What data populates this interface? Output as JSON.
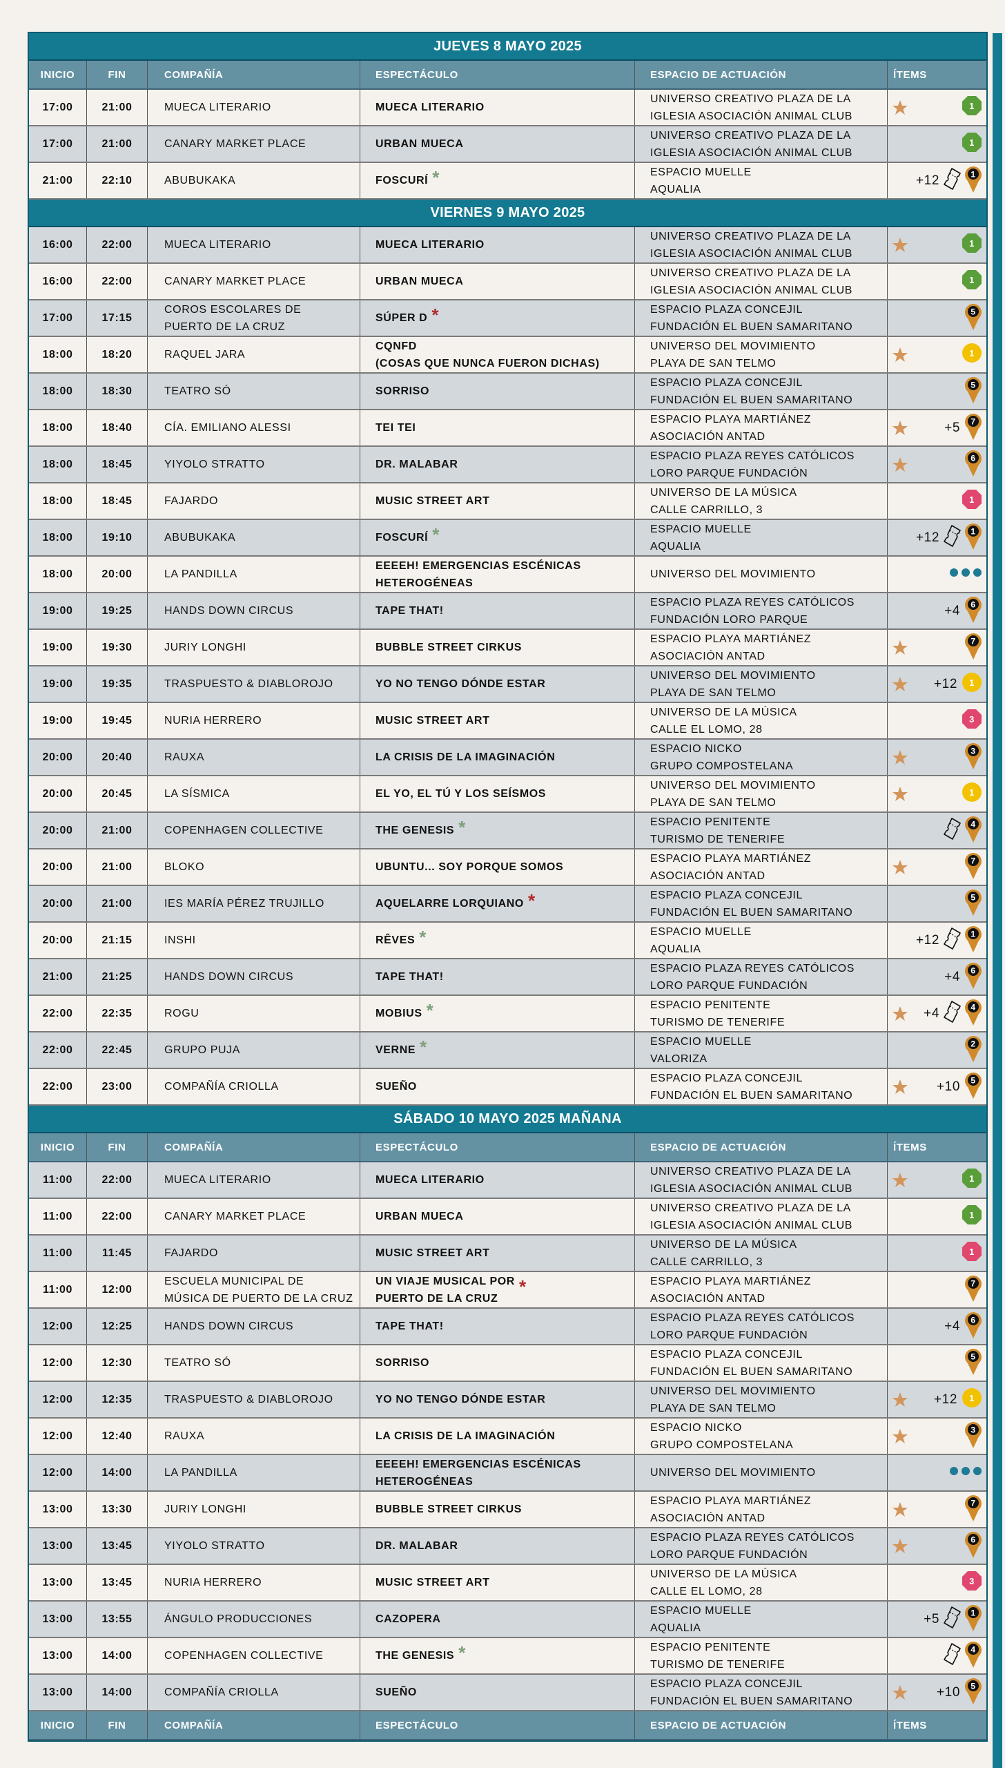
{
  "colors": {
    "title_bg": "#137a91",
    "header_bg": "#6492a3",
    "row_light": "#f5f2ed",
    "row_grey": "#d3d8dc",
    "star": "#d4955a",
    "asterisk_green": "#7ea07a",
    "asterisk_red": "#b02a2a",
    "badge_green": "#5a9e3a",
    "badge_pink": "#e0466e",
    "badge_yellow": "#f2c200",
    "badge_pin": "#d08a2a",
    "dots": "#1f7a94"
  },
  "columns": {
    "inicio": "INICIO",
    "fin": "FIN",
    "compania": "COMPAÑÍA",
    "espectaculo": "ESPECTÁCULO",
    "espacio": "ESPACIO DE ACTUACIÓN",
    "items": "ÍTEMS"
  },
  "sections": [
    {
      "title": "JUEVES 8 MAYO 2025",
      "show_header": true,
      "first_row": "cream",
      "rows": [
        {
          "inicio": "17:00",
          "fin": "21:00",
          "compania": [
            "MUECA LITERARIO"
          ],
          "espectaculo": [
            "MUECA LITERARIO"
          ],
          "espacio": [
            "UNIVERSO CREATIVO PLAZA DE LA",
            "IGLESIA ASOCIACIÓN ANIMAL CLUB"
          ],
          "star": true,
          "badge": "green-octagon",
          "num": "1"
        },
        {
          "inicio": "17:00",
          "fin": "21:00",
          "compania": [
            "CANARY MARKET PLACE"
          ],
          "espectaculo": [
            "URBAN MUECA"
          ],
          "espacio": [
            "UNIVERSO CREATIVO PLAZA DE LA",
            "IGLESIA ASOCIACIÓN ANIMAL CLUB"
          ],
          "badge": "green-octagon",
          "num": "1"
        },
        {
          "inicio": "21:00",
          "fin": "22:10",
          "compania": [
            "ABUBUKAKA"
          ],
          "espectaculo": [
            "FOSCURÍ"
          ],
          "asterisk": "green",
          "espacio": [
            "ESPACIO MUELLE",
            "AQUALIA"
          ],
          "extra": "+12",
          "ticket": true,
          "badge": "pin",
          "num": "1"
        }
      ]
    },
    {
      "title": "VIERNES 9 MAYO 2025",
      "show_header": false,
      "first_row": "grey",
      "rows": [
        {
          "inicio": "16:00",
          "fin": "22:00",
          "compania": [
            "MUECA LITERARIO"
          ],
          "espectaculo": [
            "MUECA LITERARIO"
          ],
          "espacio": [
            "UNIVERSO CREATIVO PLAZA DE LA",
            "IGLESIA ASOCIACIÓN ANIMAL CLUB"
          ],
          "star": true,
          "badge": "green-octagon",
          "num": "1"
        },
        {
          "inicio": "16:00",
          "fin": "22:00",
          "compania": [
            "CANARY MARKET PLACE"
          ],
          "espectaculo": [
            "URBAN MUECA"
          ],
          "espacio": [
            "UNIVERSO CREATIVO PLAZA DE LA",
            "IGLESIA ASOCIACIÓN ANIMAL CLUB"
          ],
          "badge": "green-octagon",
          "num": "1"
        },
        {
          "inicio": "17:00",
          "fin": "17:15",
          "compania": [
            "COROS ESCOLARES DE",
            "PUERTO DE LA CRUZ"
          ],
          "espectaculo": [
            "SÚPER D"
          ],
          "asterisk": "red",
          "espacio": [
            "ESPACIO PLAZA CONCEJIL",
            "FUNDACIÓN EL BUEN SAMARITANO"
          ],
          "badge": "pin",
          "num": "5"
        },
        {
          "inicio": "18:00",
          "fin": "18:20",
          "compania": [
            "RAQUEL JARA"
          ],
          "espectaculo": [
            "CQNFD",
            "(COSAS QUE NUNCA FUERON DICHAS)"
          ],
          "espacio": [
            "UNIVERSO DEL MOVIMIENTO",
            "PLAYA DE SAN TELMO"
          ],
          "star": true,
          "badge": "yellow-circle",
          "num": "1"
        },
        {
          "inicio": "18:00",
          "fin": "18:30",
          "compania": [
            "TEATRO SÓ"
          ],
          "espectaculo": [
            "SORRISO"
          ],
          "espacio": [
            "ESPACIO PLAZA CONCEJIL",
            "FUNDACIÓN EL BUEN SAMARITANO"
          ],
          "badge": "pin",
          "num": "5"
        },
        {
          "inicio": "18:00",
          "fin": "18:40",
          "compania": [
            "CÍA. EMILIANO ALESSI"
          ],
          "espectaculo": [
            "TEI TEI"
          ],
          "espacio": [
            "ESPACIO PLAYA MARTIÁNEZ",
            "ASOCIACIÓN ANTAD"
          ],
          "star": true,
          "extra": "+5",
          "badge": "pin",
          "num": "7"
        },
        {
          "inicio": "18:00",
          "fin": "18:45",
          "compania": [
            "YIYOLO STRATTO"
          ],
          "espectaculo": [
            "DR. MALABAR"
          ],
          "espacio": [
            "ESPACIO PLAZA REYES CATÓLICOS",
            "LORO PARQUE FUNDACIÓN"
          ],
          "star": true,
          "badge": "pin",
          "num": "6"
        },
        {
          "inicio": "18:00",
          "fin": "18:45",
          "compania": [
            "FAJARDO"
          ],
          "espectaculo": [
            "MUSIC STREET ART"
          ],
          "espacio": [
            "UNIVERSO DE LA MÚSICA",
            "CALLE CARRILLO, 3"
          ],
          "badge": "pink-octagon",
          "num": "1"
        },
        {
          "inicio": "18:00",
          "fin": "19:10",
          "compania": [
            "ABUBUKAKA"
          ],
          "espectaculo": [
            "FOSCURÍ"
          ],
          "asterisk": "green",
          "espacio": [
            "ESPACIO MUELLE",
            "AQUALIA"
          ],
          "extra": "+12",
          "ticket": true,
          "badge": "pin",
          "num": "1"
        },
        {
          "inicio": "18:00",
          "fin": "20:00",
          "compania": [
            "LA PANDILLA"
          ],
          "espectaculo": [
            "EEEEH! EMERGENCIAS ESCÉNICAS",
            "HETEROGÉNEAS"
          ],
          "espacio": [
            "UNIVERSO DEL MOVIMIENTO"
          ],
          "badge": "dots"
        },
        {
          "inicio": "19:00",
          "fin": "19:25",
          "compania": [
            "HANDS DOWN CIRCUS"
          ],
          "espectaculo": [
            "TAPE THAT!"
          ],
          "espacio": [
            "ESPACIO PLAZA REYES CATÓLICOS",
            "FUNDACIÓN LORO PARQUE"
          ],
          "extra": "+4",
          "badge": "pin",
          "num": "6"
        },
        {
          "inicio": "19:00",
          "fin": "19:30",
          "compania": [
            "JURIY LONGHI"
          ],
          "espectaculo": [
            "BUBBLE STREET CIRKUS"
          ],
          "espacio": [
            "ESPACIO PLAYA MARTIÁNEZ",
            "ASOCIACIÓN ANTAD"
          ],
          "star": true,
          "badge": "pin",
          "num": "7"
        },
        {
          "inicio": "19:00",
          "fin": "19:35",
          "compania": [
            "TRASPUESTO & DIABLOROJO"
          ],
          "espectaculo": [
            "YO NO TENGO DÓNDE ESTAR"
          ],
          "espacio": [
            "UNIVERSO DEL MOVIMIENTO",
            "PLAYA DE SAN TELMO"
          ],
          "star": true,
          "extra": "+12",
          "badge": "yellow-circle",
          "num": "1"
        },
        {
          "inicio": "19:00",
          "fin": "19:45",
          "compania": [
            "NURIA HERRERO"
          ],
          "espectaculo": [
            "MUSIC STREET ART"
          ],
          "espacio": [
            "UNIVERSO DE LA MÚSICA",
            "CALLE EL LOMO, 28"
          ],
          "badge": "pink-octagon",
          "num": "3"
        },
        {
          "inicio": "20:00",
          "fin": "20:40",
          "compania": [
            "RAUXA"
          ],
          "espectaculo": [
            "LA CRISIS DE LA IMAGINACIÓN"
          ],
          "espacio": [
            "ESPACIO NICKO",
            "GRUPO COMPOSTELANA"
          ],
          "star": true,
          "badge": "pin",
          "num": "3"
        },
        {
          "inicio": "20:00",
          "fin": "20:45",
          "compania": [
            "LA SÍSMICA"
          ],
          "espectaculo": [
            "EL YO, EL TÚ Y LOS SEÍSMOS"
          ],
          "espacio": [
            "UNIVERSO DEL MOVIMIENTO",
            "PLAYA DE SAN TELMO"
          ],
          "star": true,
          "badge": "yellow-circle",
          "num": "1"
        },
        {
          "inicio": "20:00",
          "fin": "21:00",
          "compania": [
            "COPENHAGEN COLLECTIVE"
          ],
          "espectaculo": [
            "THE GENESIS"
          ],
          "asterisk": "green",
          "espacio": [
            "ESPACIO PENITENTE",
            "TURISMO DE TENERIFE"
          ],
          "ticket": true,
          "badge": "pin",
          "num": "4"
        },
        {
          "inicio": "20:00",
          "fin": "21:00",
          "compania": [
            "BLOKO"
          ],
          "espectaculo": [
            "UBUNTU... SOY PORQUE SOMOS"
          ],
          "espacio": [
            "ESPACIO PLAYA MARTIÁNEZ",
            "ASOCIACIÓN ANTAD"
          ],
          "star": true,
          "badge": "pin",
          "num": "7"
        },
        {
          "inicio": "20:00",
          "fin": "21:00",
          "compania": [
            "IES MARÍA PÉREZ TRUJILLO"
          ],
          "espectaculo": [
            "AQUELARRE LORQUIANO"
          ],
          "asterisk": "red",
          "espacio": [
            "ESPACIO PLAZA CONCEJIL",
            "FUNDACIÓN EL BUEN SAMARITANO"
          ],
          "badge": "pin",
          "num": "5"
        },
        {
          "inicio": "20:00",
          "fin": "21:15",
          "compania": [
            "INSHI"
          ],
          "espectaculo": [
            "RÊVES"
          ],
          "asterisk": "green",
          "espacio": [
            "ESPACIO MUELLE",
            "AQUALIA"
          ],
          "extra": "+12",
          "ticket": true,
          "badge": "pin",
          "num": "1"
        },
        {
          "inicio": "21:00",
          "fin": "21:25",
          "compania": [
            "HANDS DOWN CIRCUS"
          ],
          "espectaculo": [
            "TAPE THAT!"
          ],
          "espacio": [
            "ESPACIO PLAZA REYES CATÓLICOS",
            "LORO PARQUE FUNDACIÓN"
          ],
          "extra": "+4",
          "badge": "pin",
          "num": "6"
        },
        {
          "inicio": "22:00",
          "fin": "22:35",
          "compania": [
            "ROGU"
          ],
          "espectaculo": [
            "MOBIUS"
          ],
          "asterisk": "green",
          "espacio": [
            "ESPACIO PENITENTE",
            "TURISMO DE TENERIFE"
          ],
          "star": true,
          "extra": "+4",
          "ticket": true,
          "badge": "pin",
          "num": "4"
        },
        {
          "inicio": "22:00",
          "fin": "22:45",
          "compania": [
            "GRUPO PUJA"
          ],
          "espectaculo": [
            "VERNE"
          ],
          "asterisk": "green",
          "espacio": [
            "ESPACIO MUELLE",
            "VALORIZA"
          ],
          "badge": "pin",
          "num": "2"
        },
        {
          "inicio": "22:00",
          "fin": "23:00",
          "compania": [
            "COMPAÑÍA CRIOLLA"
          ],
          "espectaculo": [
            "SUEÑO"
          ],
          "espacio": [
            "ESPACIO PLAZA CONCEJIL",
            "FUNDACIÓN EL BUEN SAMARITANO"
          ],
          "star": true,
          "extra": "+10",
          "badge": "pin",
          "num": "5"
        }
      ]
    },
    {
      "title": "SÁBADO 10 MAYO 2025 MAÑANA",
      "show_header": true,
      "show_footer": true,
      "first_row": "grey",
      "rows": [
        {
          "inicio": "11:00",
          "fin": "22:00",
          "compania": [
            "MUECA LITERARIO"
          ],
          "espectaculo": [
            "MUECA LITERARIO"
          ],
          "espacio": [
            "UNIVERSO CREATIVO PLAZA DE LA",
            "IGLESIA ASOCIACIÓN ANIMAL CLUB"
          ],
          "star": true,
          "badge": "green-octagon",
          "num": "1"
        },
        {
          "inicio": "11:00",
          "fin": "22:00",
          "compania": [
            "CANARY MARKET PLACE"
          ],
          "espectaculo": [
            "URBAN MUECA"
          ],
          "espacio": [
            "UNIVERSO CREATIVO PLAZA DE LA",
            "IGLESIA ASOCIACIÓN ANIMAL CLUB"
          ],
          "badge": "green-octagon",
          "num": "1"
        },
        {
          "inicio": "11:00",
          "fin": "11:45",
          "compania": [
            "FAJARDO"
          ],
          "espectaculo": [
            "MUSIC STREET ART"
          ],
          "espacio": [
            "UNIVERSO DE LA MÚSICA",
            "CALLE CARRILLO, 3"
          ],
          "badge": "pink-octagon",
          "num": "1"
        },
        {
          "inicio": "11:00",
          "fin": "12:00",
          "compania": [
            "ESCUELA MUNICIPAL DE",
            "MÚSICA DE PUERTO DE LA CRUZ"
          ],
          "espectaculo": [
            "UN VIAJE MUSICAL POR",
            "PUERTO DE LA CRUZ"
          ],
          "asterisk": "red",
          "espacio": [
            "ESPACIO PLAYA MARTIÁNEZ",
            "ASOCIACIÓN ANTAD"
          ],
          "badge": "pin",
          "num": "7"
        },
        {
          "inicio": "12:00",
          "fin": "12:25",
          "compania": [
            "HANDS DOWN CIRCUS"
          ],
          "espectaculo": [
            "TAPE THAT!"
          ],
          "espacio": [
            "ESPACIO PLAZA REYES CATÓLICOS",
            "LORO PARQUE FUNDACIÓN"
          ],
          "extra": "+4",
          "badge": "pin",
          "num": "6"
        },
        {
          "inicio": "12:00",
          "fin": "12:30",
          "compania": [
            "TEATRO SÓ"
          ],
          "espectaculo": [
            "SORRISO"
          ],
          "espacio": [
            "ESPACIO PLAZA CONCEJIL",
            "FUNDACIÓN EL BUEN SAMARITANO"
          ],
          "badge": "pin",
          "num": "5"
        },
        {
          "inicio": "12:00",
          "fin": "12:35",
          "compania": [
            "TRASPUESTO & DIABLOROJO"
          ],
          "espectaculo": [
            "YO NO TENGO DÓNDE ESTAR"
          ],
          "espacio": [
            "UNIVERSO DEL MOVIMIENTO",
            "PLAYA DE SAN TELMO"
          ],
          "star": true,
          "extra": "+12",
          "badge": "yellow-circle",
          "num": "1"
        },
        {
          "inicio": "12:00",
          "fin": "12:40",
          "compania": [
            "RAUXA"
          ],
          "espectaculo": [
            "LA CRISIS DE LA IMAGINACIÓN"
          ],
          "espacio": [
            "ESPACIO NICKO",
            "GRUPO COMPOSTELANA"
          ],
          "star": true,
          "badge": "pin",
          "num": "3"
        },
        {
          "inicio": "12:00",
          "fin": "14:00",
          "compania": [
            "LA PANDILLA"
          ],
          "espectaculo": [
            "EEEEH! EMERGENCIAS ESCÉNICAS",
            "HETEROGÉNEAS"
          ],
          "espacio": [
            "UNIVERSO DEL MOVIMIENTO"
          ],
          "badge": "dots"
        },
        {
          "inicio": "13:00",
          "fin": "13:30",
          "compania": [
            "JURIY LONGHI"
          ],
          "espectaculo": [
            "BUBBLE STREET CIRKUS"
          ],
          "espacio": [
            "ESPACIO PLAYA MARTIÁNEZ",
            "ASOCIACIÓN ANTAD"
          ],
          "star": true,
          "badge": "pin",
          "num": "7"
        },
        {
          "inicio": "13:00",
          "fin": "13:45",
          "compania": [
            "YIYOLO STRATTO"
          ],
          "espectaculo": [
            "DR. MALABAR"
          ],
          "espacio": [
            "ESPACIO PLAZA REYES CATÓLICOS",
            "LORO PARQUE FUNDACIÓN"
          ],
          "star": true,
          "badge": "pin",
          "num": "6"
        },
        {
          "inicio": "13:00",
          "fin": "13:45",
          "compania": [
            "NURIA HERRERO"
          ],
          "espectaculo": [
            "MUSIC STREET ART"
          ],
          "espacio": [
            "UNIVERSO DE LA MÚSICA",
            "CALLE EL LOMO, 28"
          ],
          "badge": "pink-octagon",
          "num": "3"
        },
        {
          "inicio": "13:00",
          "fin": "13:55",
          "compania": [
            "ÁNGULO PRODUCCIONES"
          ],
          "espectaculo": [
            "CAZOPERA"
          ],
          "espacio": [
            "ESPACIO MUELLE",
            "AQUALIA"
          ],
          "extra": "+5",
          "ticket": true,
          "badge": "pin",
          "num": "1"
        },
        {
          "inicio": "13:00",
          "fin": "14:00",
          "compania": [
            "COPENHAGEN COLLECTIVE"
          ],
          "espectaculo": [
            "THE GENESIS"
          ],
          "asterisk": "green",
          "espacio": [
            "ESPACIO PENITENTE",
            "TURISMO DE TENERIFE"
          ],
          "ticket": true,
          "badge": "pin",
          "num": "4"
        },
        {
          "inicio": "13:00",
          "fin": "14:00",
          "compania": [
            "COMPAÑÍA CRIOLLA"
          ],
          "espectaculo": [
            "SUEÑO"
          ],
          "espacio": [
            "ESPACIO PLAZA CONCEJIL",
            "FUNDACIÓN EL BUEN SAMARITANO"
          ],
          "star": true,
          "extra": "+10",
          "badge": "pin",
          "num": "5"
        }
      ]
    }
  ]
}
